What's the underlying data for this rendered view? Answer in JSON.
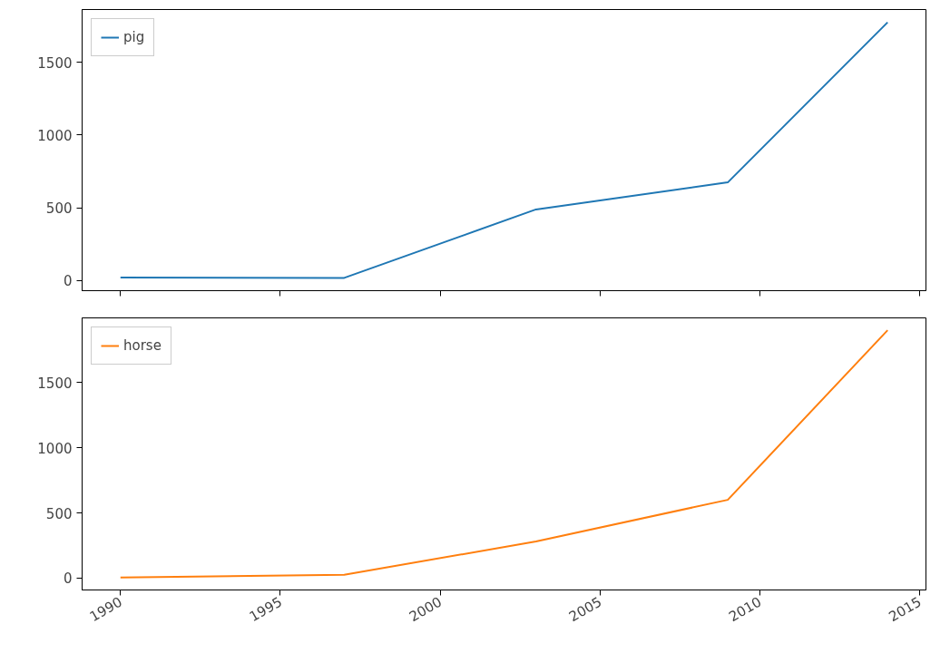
{
  "chart_data": [
    {
      "type": "line",
      "x": [
        1990,
        1997,
        2003,
        2009,
        2014
      ],
      "series": [
        {
          "name": "pig",
          "color": "#1f77b4",
          "values": [
            20,
            18,
            489,
            675,
            1776
          ]
        }
      ],
      "xlim": [
        1988.8,
        2015.2
      ],
      "xticks": [
        1990,
        1995,
        2000,
        2005,
        2010,
        2015
      ],
      "ylim": [
        -70,
        1864
      ],
      "yticks": [
        0,
        500,
        1000,
        1500
      ],
      "grid": false,
      "legend": "top left",
      "tick_labels": "y"
    },
    {
      "type": "line",
      "x": [
        1990,
        1997,
        2003,
        2009,
        2014
      ],
      "series": [
        {
          "name": "horse",
          "color": "#ff7f0e",
          "values": [
            4,
            25,
            281,
            600,
            1900
          ]
        }
      ],
      "xlim": [
        1988.8,
        2015.2
      ],
      "xticks": [
        1990,
        1995,
        2000,
        2005,
        2010,
        2015
      ],
      "ylim": [
        -91,
        1995
      ],
      "yticks": [
        0,
        500,
        1000,
        1500
      ],
      "grid": false,
      "legend": "top left"
    }
  ]
}
